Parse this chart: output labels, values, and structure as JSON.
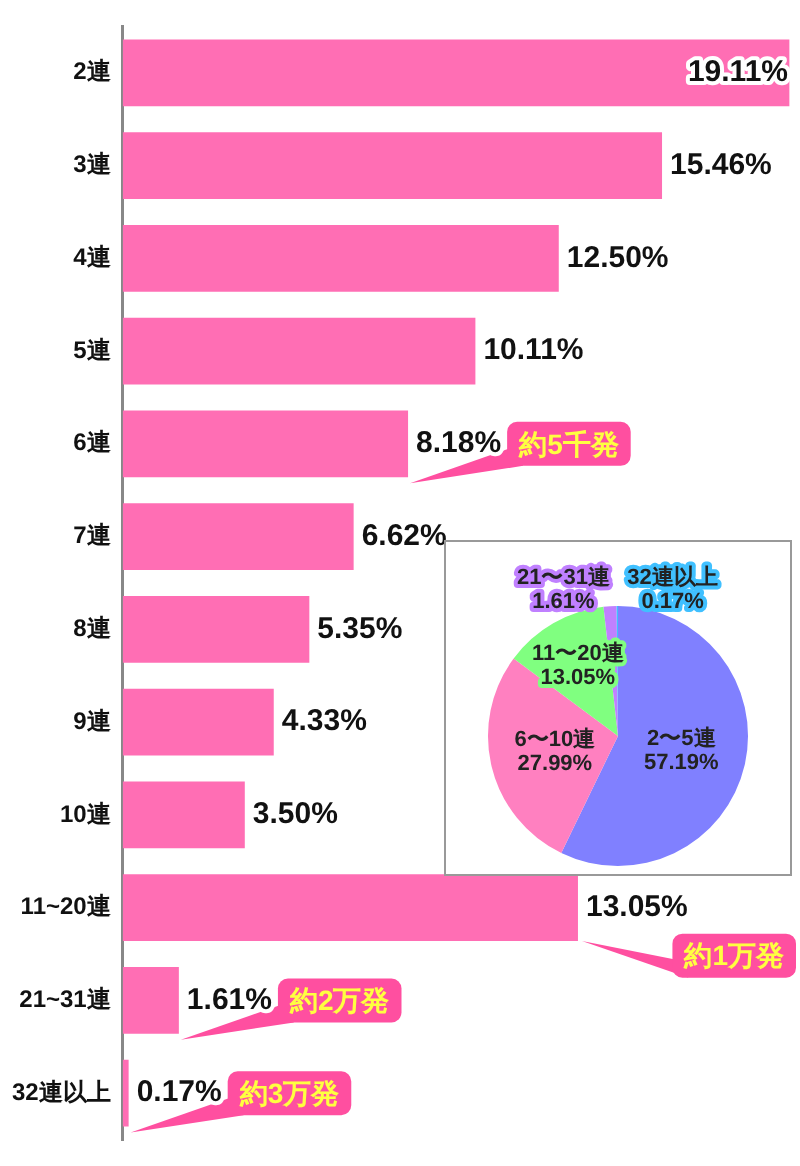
{
  "chart_data": [
    {
      "type": "bar",
      "orientation": "horizontal",
      "categories": [
        "2連",
        "3連",
        "4連",
        "5連",
        "6連",
        "7連",
        "8連",
        "9連",
        "10連",
        "11~20連",
        "21~31連",
        "32連以上"
      ],
      "values": [
        19.11,
        15.46,
        12.5,
        10.11,
        8.18,
        6.62,
        5.35,
        4.33,
        3.5,
        13.05,
        1.61,
        0.17
      ],
      "value_labels": [
        "19.11%",
        "15.46%",
        "12.50%",
        "10.11%",
        "8.18%",
        "6.62%",
        "5.35%",
        "4.33%",
        "3.50%",
        "13.05%",
        "1.61%",
        "0.17%"
      ],
      "color": "#ff6eb4",
      "xlim": [
        0,
        19.3
      ],
      "tick_labels": "y",
      "grid": false,
      "legend": false,
      "annotations": [
        {
          "text": "約5千発",
          "x": 8.18,
          "y": "6連"
        },
        {
          "text": "約1万発",
          "x": 13.05,
          "y": "11~20連"
        },
        {
          "text": "約2万発",
          "x": 1.61,
          "y": "21~31連"
        },
        {
          "text": "約3万発",
          "x": 0.17,
          "y": "32連以上"
        }
      ]
    },
    {
      "type": "pie",
      "categories": [
        "2〜5連",
        "6〜10連",
        "11〜20連",
        "21〜31連",
        "32連以上"
      ],
      "values": [
        57.19,
        27.99,
        13.05,
        1.61,
        0.17
      ],
      "value_labels": [
        "57.19%",
        "27.99%",
        "13.05%",
        "1.61%",
        "0.17%"
      ],
      "colors": [
        "#8080ff",
        "#ff80c0",
        "#80ff80",
        "#c080ff",
        "#40c0ff"
      ],
      "legend": false
    }
  ]
}
